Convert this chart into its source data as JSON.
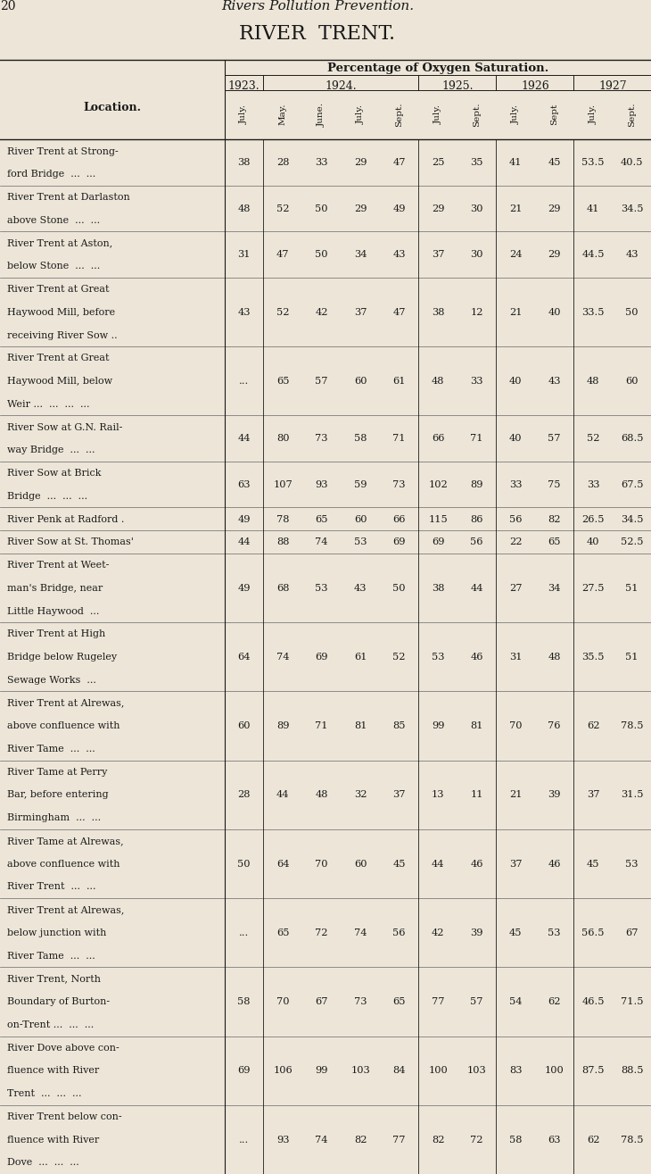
{
  "page_number": "20",
  "page_header": "Rivers Pollution Prevention.",
  "title": "RIVER  TRENT.",
  "subtitle": "Percentage of Oxygen Saturation.",
  "bg_color": "#ede6d8",
  "text_color": "#1a1a1a",
  "col_header_months": [
    "July.",
    "May.",
    "June.",
    "July.",
    "Sept.",
    "July.",
    "Sept.",
    "July.",
    "Sept",
    "July.",
    "Sept."
  ],
  "year_spans": [
    [
      "1923.",
      0,
      1
    ],
    [
      "1924.",
      1,
      5
    ],
    [
      "1925.",
      5,
      7
    ],
    [
      "1926",
      7,
      9
    ],
    [
      "1927",
      9,
      11
    ]
  ],
  "rows": [
    {
      "location": [
        "River Trent at Strong-",
        "ford Bridge  ...  ..."
      ],
      "values": [
        "38",
        "28",
        "33",
        "29",
        "47",
        "25",
        "35",
        "41",
        "45",
        "53.5",
        "40.5"
      ]
    },
    {
      "location": [
        "River Trent at Darlaston",
        "above Stone  ...  ..."
      ],
      "values": [
        "48",
        "52",
        "50",
        "29",
        "49",
        "29",
        "30",
        "21",
        "29",
        "41",
        "34.5"
      ]
    },
    {
      "location": [
        "River Trent at Aston,",
        "below Stone  ...  ..."
      ],
      "values": [
        "31",
        "47",
        "50",
        "34",
        "43",
        "37",
        "30",
        "24",
        "29",
        "44.5",
        "43"
      ]
    },
    {
      "location": [
        "River Trent at Great",
        "Haywood Mill, before",
        "receiving River Sow .."
      ],
      "values": [
        "43",
        "52",
        "42",
        "37",
        "47",
        "38",
        "12",
        "21",
        "40",
        "33.5",
        "50"
      ]
    },
    {
      "location": [
        "River Trent at Great",
        "Haywood Mill, below",
        "Weir ...  ...  ...  ..."
      ],
      "values": [
        "...",
        "65",
        "57",
        "60",
        "61",
        "48",
        "33",
        "40",
        "43",
        "48",
        "60"
      ]
    },
    {
      "location": [
        "River Sow at G.N. Rail-",
        "way Bridge  ...  ..."
      ],
      "values": [
        "44",
        "80",
        "73",
        "58",
        "71",
        "66",
        "71",
        "40",
        "57",
        "52",
        "68.5"
      ]
    },
    {
      "location": [
        "River Sow at Brick",
        "Bridge  ...  ...  ..."
      ],
      "values": [
        "63",
        "107",
        "93",
        "59",
        "73",
        "102",
        "89",
        "33",
        "75",
        "33",
        "67.5"
      ]
    },
    {
      "location": [
        "River Penk at Radford ."
      ],
      "values": [
        "49",
        "78",
        "65",
        "60",
        "66",
        "115",
        "86",
        "56",
        "82",
        "26.5",
        "34.5"
      ]
    },
    {
      "location": [
        "River Sow at St. Thomas'"
      ],
      "values": [
        "44",
        "88",
        "74",
        "53",
        "69",
        "69",
        "56",
        "22",
        "65",
        "40",
        "52.5"
      ]
    },
    {
      "location": [
        "River Trent at Weet-",
        "man's Bridge, near",
        "Little Haywood  ..."
      ],
      "values": [
        "49",
        "68",
        "53",
        "43",
        "50",
        "38",
        "44",
        "27",
        "34",
        "27.5",
        "51"
      ]
    },
    {
      "location": [
        "River Trent at High",
        "Bridge below Rugeley",
        "Sewage Works  ..."
      ],
      "values": [
        "64",
        "74",
        "69",
        "61",
        "52",
        "53",
        "46",
        "31",
        "48",
        "35.5",
        "51"
      ]
    },
    {
      "location": [
        "River Trent at Alrewas,",
        "above confluence with",
        "River Tame  ...  ..."
      ],
      "values": [
        "60",
        "89",
        "71",
        "81",
        "85",
        "99",
        "81",
        "70",
        "76",
        "62",
        "78.5"
      ]
    },
    {
      "location": [
        "River Tame at Perry",
        "Bar, before entering",
        "Birmingham  ...  ..."
      ],
      "values": [
        "28",
        "44",
        "48",
        "32",
        "37",
        "13",
        "11",
        "21",
        "39",
        "37",
        "31.5"
      ]
    },
    {
      "location": [
        "River Tame at Alrewas,",
        "above confluence with",
        "River Trent  ...  ..."
      ],
      "values": [
        "50",
        "64",
        "70",
        "60",
        "45",
        "44",
        "46",
        "37",
        "46",
        "45",
        "53"
      ]
    },
    {
      "location": [
        "River Trent at Alrewas,",
        "below junction with",
        "River Tame  ...  ..."
      ],
      "values": [
        "...",
        "65",
        "72",
        "74",
        "56",
        "42",
        "39",
        "45",
        "53",
        "56.5",
        "67"
      ]
    },
    {
      "location": [
        "River Trent, North",
        "Boundary of Burton-",
        "on-Trent ...  ...  ..."
      ],
      "values": [
        "58",
        "70",
        "67",
        "73",
        "65",
        "77",
        "57",
        "54",
        "62",
        "46.5",
        "71.5"
      ]
    },
    {
      "location": [
        "River Dove above con-",
        "fluence with River",
        "Trent  ...  ...  ..."
      ],
      "values": [
        "69",
        "106",
        "99",
        "103",
        "84",
        "100",
        "103",
        "83",
        "100",
        "87.5",
        "88.5"
      ]
    },
    {
      "location": [
        "River Trent below con-",
        "fluence with River",
        "Dove  ...  ...  ..."
      ],
      "values": [
        "...",
        "93",
        "74",
        "82",
        "77",
        "82",
        "72",
        "58",
        "63",
        "62",
        "78.5"
      ]
    }
  ]
}
